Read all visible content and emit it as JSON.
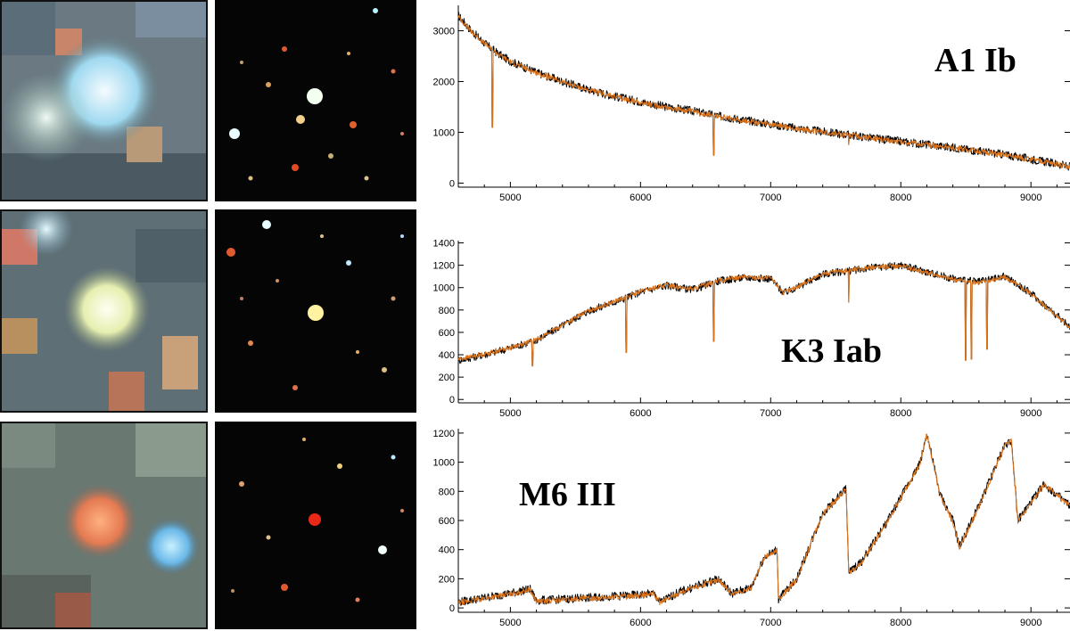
{
  "colors": {
    "observed": "#000000",
    "model": "#d9731c",
    "axis": "#000000"
  },
  "chart_data": [
    {
      "type": "line",
      "title": "A1 Ib",
      "xlabel": "",
      "ylabel": "",
      "xlim": [
        4600,
        9300
      ],
      "ylim": [
        -80,
        3500
      ],
      "xticks": [
        5000,
        6000,
        7000,
        8000,
        9000
      ],
      "yticks": [
        0,
        1000,
        2000,
        3000
      ],
      "x": [
        4600,
        4700,
        4800,
        4900,
        5000,
        5200,
        5400,
        5600,
        5800,
        6000,
        6200,
        6400,
        6600,
        6800,
        7000,
        7200,
        7400,
        7600,
        7800,
        8000,
        8200,
        8400,
        8600,
        8800,
        9000,
        9200,
        9300
      ],
      "series": [
        {
          "name": "observed",
          "values": [
            3300,
            3000,
            2760,
            2560,
            2400,
            2180,
            2000,
            1840,
            1710,
            1600,
            1500,
            1420,
            1320,
            1240,
            1160,
            1080,
            1010,
            950,
            880,
            820,
            760,
            700,
            630,
            560,
            470,
            380,
            320
          ]
        },
        {
          "name": "model",
          "values": [
            3280,
            2990,
            2750,
            2550,
            2390,
            2170,
            1990,
            1830,
            1700,
            1590,
            1490,
            1410,
            1310,
            1230,
            1150,
            1075,
            1005,
            945,
            875,
            815,
            755,
            695,
            625,
            555,
            465,
            375,
            315
          ]
        }
      ],
      "absorption_lines": [
        {
          "x": 4861,
          "y": 1100
        },
        {
          "x": 6563,
          "y": 550
        },
        {
          "x": 7600,
          "y": 760
        }
      ]
    },
    {
      "type": "line",
      "title": "K3 Iab",
      "xlabel": "",
      "ylabel": "",
      "xlim": [
        4600,
        9300
      ],
      "ylim": [
        -30,
        1420
      ],
      "xticks": [
        5000,
        6000,
        7000,
        8000,
        9000
      ],
      "yticks": [
        0,
        200,
        400,
        600,
        800,
        1000,
        1200,
        1400
      ],
      "x": [
        4600,
        4800,
        5000,
        5200,
        5400,
        5600,
        5800,
        6000,
        6200,
        6400,
        6600,
        6800,
        7000,
        7100,
        7200,
        7400,
        7600,
        7800,
        8000,
        8200,
        8400,
        8600,
        8800,
        9000,
        9200,
        9300
      ],
      "series": [
        {
          "name": "observed",
          "values": [
            350,
            400,
            460,
            530,
            660,
            790,
            870,
            960,
            1020,
            980,
            1060,
            1090,
            1080,
            950,
            1000,
            1120,
            1150,
            1180,
            1200,
            1140,
            1080,
            1050,
            1100,
            950,
            750,
            650
          ]
        },
        {
          "name": "model",
          "values": [
            360,
            405,
            465,
            535,
            665,
            795,
            875,
            965,
            1025,
            985,
            1065,
            1095,
            1085,
            955,
            1005,
            1125,
            1155,
            1185,
            1195,
            1135,
            1075,
            1045,
            1095,
            945,
            745,
            645
          ]
        }
      ],
      "absorption_lines": [
        {
          "x": 5170,
          "y": 300
        },
        {
          "x": 5890,
          "y": 420
        },
        {
          "x": 6563,
          "y": 520
        },
        {
          "x": 7600,
          "y": 870
        },
        {
          "x": 8498,
          "y": 350
        },
        {
          "x": 8542,
          "y": 360
        },
        {
          "x": 8662,
          "y": 450
        }
      ]
    },
    {
      "type": "line",
      "title": "M6 III",
      "xlabel": "",
      "ylabel": "",
      "xlim": [
        4600,
        9300
      ],
      "ylim": [
        -30,
        1230
      ],
      "xticks": [
        5000,
        6000,
        7000,
        8000,
        9000
      ],
      "yticks": [
        0,
        200,
        400,
        600,
        800,
        1000,
        1200
      ],
      "x": [
        4600,
        4800,
        5000,
        5150,
        5200,
        5400,
        5600,
        5800,
        6000,
        6100,
        6150,
        6300,
        6500,
        6600,
        6700,
        6850,
        6950,
        7050,
        7060,
        7200,
        7400,
        7580,
        7600,
        7700,
        7900,
        8150,
        8200,
        8300,
        8400,
        8450,
        8600,
        8800,
        8850,
        8900,
        9100,
        9300
      ],
      "series": [
        {
          "name": "observed",
          "values": [
            40,
            70,
            100,
            130,
            50,
            60,
            70,
            80,
            90,
            100,
            40,
            110,
            170,
            200,
            100,
            140,
            350,
            400,
            60,
            200,
            650,
            820,
            240,
            320,
            600,
            1000,
            1200,
            780,
            600,
            420,
            700,
            1120,
            1150,
            600,
            850,
            700
          ]
        },
        {
          "name": "model",
          "values": [
            35,
            65,
            95,
            125,
            45,
            55,
            65,
            75,
            85,
            95,
            35,
            105,
            165,
            195,
            95,
            135,
            345,
            395,
            55,
            195,
            645,
            815,
            235,
            315,
            595,
            995,
            1195,
            775,
            595,
            415,
            695,
            1115,
            1145,
            595,
            845,
            695
          ]
        }
      ],
      "absorption_lines": []
    }
  ]
}
